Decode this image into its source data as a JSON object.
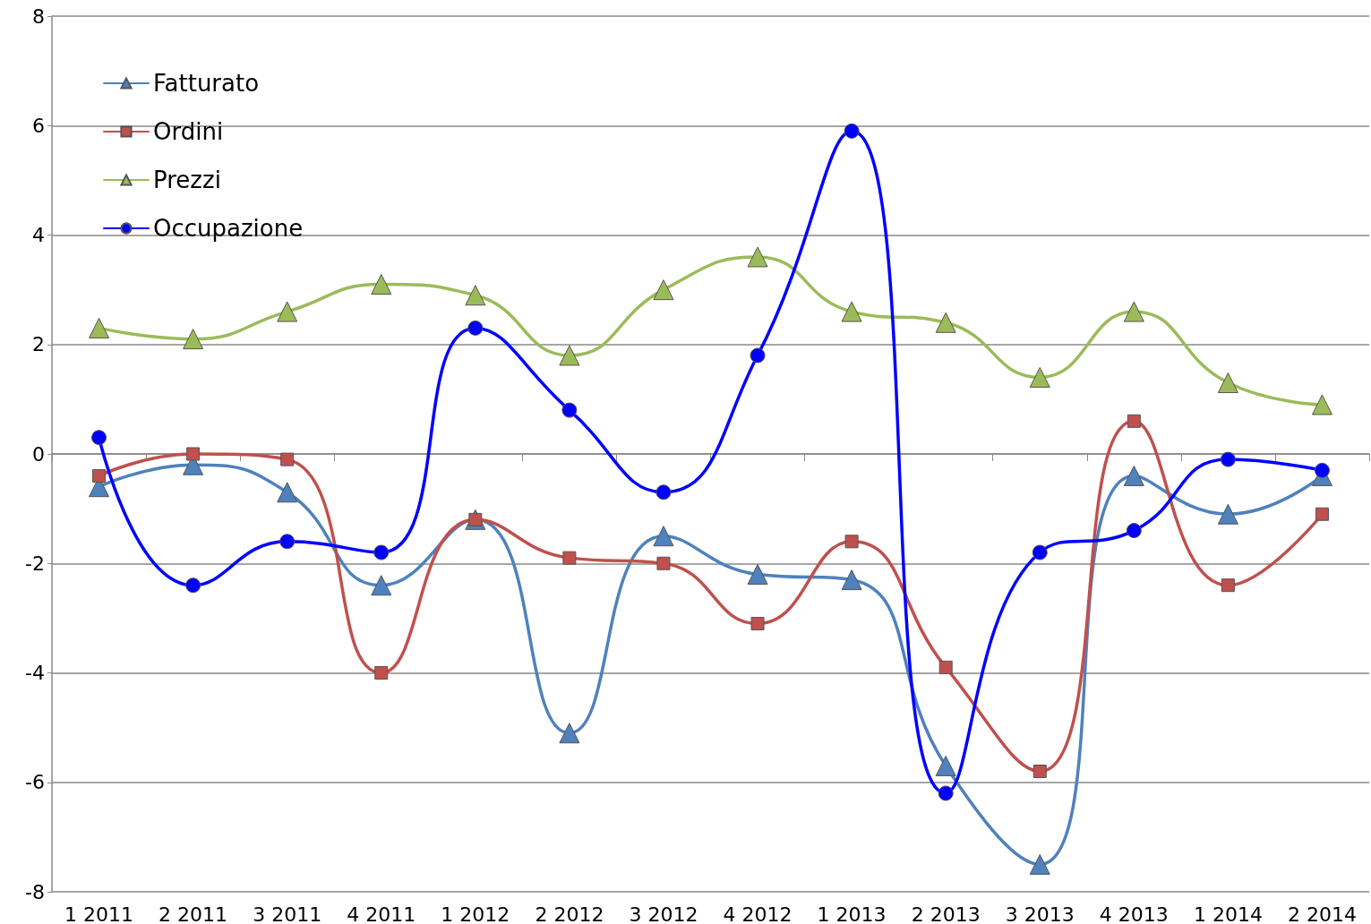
{
  "chart_data": {
    "type": "line",
    "categories": [
      "1 2011",
      "2 2011",
      "3 2011",
      "4 2011",
      "1 2012",
      "2 2012",
      "3 2012",
      "4 2012",
      "1 2013",
      "2 2013",
      "3 2013",
      "4 2013",
      "1 2014",
      "2 2014"
    ],
    "series": [
      {
        "name": "Fatturato",
        "color": "#4f81bd",
        "marker": "triangle",
        "values": [
          -0.6,
          -0.2,
          -0.7,
          -2.4,
          -1.2,
          -5.1,
          -1.5,
          -2.2,
          -2.3,
          -5.7,
          -7.5,
          -0.4,
          -1.1,
          -0.4
        ]
      },
      {
        "name": "Ordini",
        "color": "#c0504d",
        "marker": "square",
        "values": [
          -0.4,
          0.0,
          -0.1,
          -4.0,
          -1.2,
          -1.9,
          -2.0,
          -3.1,
          -1.6,
          -3.9,
          -5.8,
          0.6,
          -2.4,
          -1.1
        ]
      },
      {
        "name": "Prezzi",
        "color": "#9bbb59",
        "marker": "triangle",
        "values": [
          2.3,
          2.1,
          2.6,
          3.1,
          2.9,
          1.8,
          3.0,
          3.6,
          2.6,
          2.4,
          1.4,
          2.6,
          1.3,
          0.9
        ]
      },
      {
        "name": "Occupazione",
        "color": "#0000ff",
        "marker": "circle",
        "values": [
          0.3,
          -2.4,
          -1.6,
          -1.8,
          2.3,
          0.8,
          -0.7,
          1.8,
          5.9,
          -6.2,
          -1.8,
          -1.4,
          -0.1,
          -0.3
        ]
      }
    ],
    "ylim": [
      -8,
      8
    ],
    "yticks": [
      -8,
      -6,
      -4,
      -2,
      0,
      2,
      4,
      6,
      8
    ],
    "grid": "y",
    "legend": "top left",
    "line_style": "solid"
  }
}
